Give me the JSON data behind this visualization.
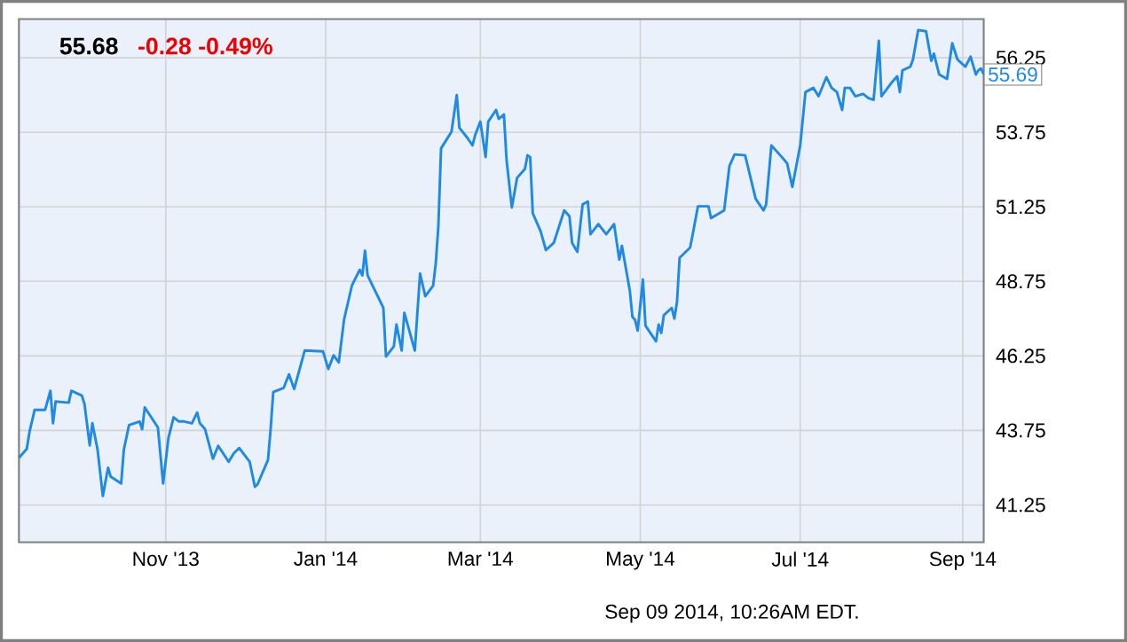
{
  "chart_data": {
    "type": "line",
    "title": "55.68",
    "subtitle": "-0.28 -0.49%",
    "annotations": [
      "Sep 09 2014, 10:26AM EDT.",
      {
        "text": "55.69",
        "x": "2014-09-09",
        "y": 55.69
      }
    ],
    "color": "#1e8ae6",
    "grid": true,
    "xlim": [
      "2013-09-06",
      "2014-09-09"
    ],
    "ylim": [
      40,
      57.55
    ],
    "xticks": [
      {
        "value": "2013-11-01",
        "label": "Nov '13"
      },
      {
        "value": "2014-01-01",
        "label": "Jan '14"
      },
      {
        "value": "2014-03-01",
        "label": "Mar '14"
      },
      {
        "value": "2014-05-01",
        "label": "May '14"
      },
      {
        "value": "2014-07-01",
        "label": "Jul '14"
      },
      {
        "value": "2014-09-01",
        "label": "Sep '14"
      }
    ],
    "yticks": [
      41.25,
      43.75,
      46.25,
      48.75,
      51.25,
      53.75,
      56.25
    ],
    "x": [
      "2013-09-06",
      "2013-09-09",
      "2013-09-10",
      "2013-09-12",
      "2013-09-16",
      "2013-09-18",
      "2013-09-19",
      "2013-09-20",
      "2013-09-25",
      "2013-09-26",
      "2013-09-30",
      "2013-10-01",
      "2013-10-03",
      "2013-10-04",
      "2013-10-06",
      "2013-10-08",
      "2013-10-10",
      "2013-10-11",
      "2013-10-15",
      "2013-10-16",
      "2013-10-18",
      "2013-10-22",
      "2013-10-23",
      "2013-10-24",
      "2013-10-29",
      "2013-10-31",
      "2013-11-02",
      "2013-11-04",
      "2013-11-06",
      "2013-11-08",
      "2013-11-11",
      "2013-11-13",
      "2013-11-14",
      "2013-11-16",
      "2013-11-19",
      "2013-11-21",
      "2013-11-25",
      "2013-11-27",
      "2013-11-29",
      "2013-12-03",
      "2013-12-05",
      "2013-12-06",
      "2013-12-10",
      "2013-12-11",
      "2013-12-12",
      "2013-12-16",
      "2013-12-18",
      "2013-12-20",
      "2013-12-24",
      "2013-12-31",
      "2014-01-02",
      "2014-01-04",
      "2014-01-06",
      "2014-01-08",
      "2014-01-11",
      "2014-01-14",
      "2014-01-15",
      "2014-01-16",
      "2014-01-17",
      "2014-01-23",
      "2014-01-24",
      "2014-01-27",
      "2014-01-28",
      "2014-01-30",
      "2014-01-31",
      "2014-02-04",
      "2014-02-06",
      "2014-02-08",
      "2014-02-11",
      "2014-02-12",
      "2014-02-13",
      "2014-02-14",
      "2014-02-18",
      "2014-02-20",
      "2014-02-21",
      "2014-02-24",
      "2014-02-26",
      "2014-02-27",
      "2014-03-01",
      "2014-03-03",
      "2014-03-04",
      "2014-03-07",
      "2014-03-08",
      "2014-03-10",
      "2014-03-11",
      "2014-03-13",
      "2014-03-15",
      "2014-03-18",
      "2014-03-19",
      "2014-03-20",
      "2014-03-21",
      "2014-03-24",
      "2014-03-26",
      "2014-03-29",
      "2014-04-02",
      "2014-04-04",
      "2014-04-05",
      "2014-04-07",
      "2014-04-09",
      "2014-04-11",
      "2014-04-12",
      "2014-04-15",
      "2014-04-18",
      "2014-04-21",
      "2014-04-23",
      "2014-04-24",
      "2014-04-27",
      "2014-04-28",
      "2014-04-29",
      "2014-04-30",
      "2014-05-02",
      "2014-05-03",
      "2014-05-07",
      "2014-05-08",
      "2014-05-09",
      "2014-05-10",
      "2014-05-13",
      "2014-05-14",
      "2014-05-15",
      "2014-05-16",
      "2014-05-20",
      "2014-05-21",
      "2014-05-23",
      "2014-05-27",
      "2014-05-28",
      "2014-06-02",
      "2014-06-04",
      "2014-06-06",
      "2014-06-10",
      "2014-06-14",
      "2014-06-17",
      "2014-06-18",
      "2014-06-20",
      "2014-06-24",
      "2014-06-26",
      "2014-06-28",
      "2014-07-01",
      "2014-07-03",
      "2014-07-06",
      "2014-07-08",
      "2014-07-11",
      "2014-07-13",
      "2014-07-15",
      "2014-07-17",
      "2014-07-18",
      "2014-07-20",
      "2014-07-22",
      "2014-07-25",
      "2014-07-27",
      "2014-07-29",
      "2014-07-31",
      "2014-08-01",
      "2014-08-05",
      "2014-08-07",
      "2014-08-08",
      "2014-08-09",
      "2014-08-12",
      "2014-08-13",
      "2014-08-15",
      "2014-08-18",
      "2014-08-20",
      "2014-08-21",
      "2014-08-23",
      "2014-08-26",
      "2014-08-28",
      "2014-08-30",
      "2014-09-02",
      "2014-09-04",
      "2014-09-06",
      "2014-09-07",
      "2014-09-08",
      "2014-09-09"
    ],
    "values": [
      42.83,
      43.13,
      43.69,
      44.44,
      44.44,
      45.08,
      43.99,
      44.72,
      44.68,
      45.08,
      44.92,
      44.64,
      43.25,
      43.99,
      43.1,
      41.55,
      42.5,
      42.2,
      41.97,
      43.1,
      43.93,
      44.05,
      43.79,
      44.52,
      43.85,
      41.97,
      43.49,
      44.19,
      44.05,
      44.05,
      43.99,
      44.35,
      43.99,
      43.79,
      42.8,
      43.23,
      42.7,
      42.99,
      43.16,
      42.7,
      41.86,
      41.94,
      42.76,
      43.79,
      45.04,
      45.18,
      45.63,
      45.14,
      46.43,
      46.4,
      45.81,
      46.27,
      46.03,
      47.46,
      48.61,
      49.14,
      48.95,
      49.78,
      48.95,
      47.86,
      46.23,
      46.57,
      47.3,
      46.43,
      47.7,
      46.43,
      49.01,
      48.25,
      48.61,
      49.36,
      50.63,
      53.21,
      53.77,
      55.0,
      53.9,
      53.57,
      53.31,
      53.65,
      54.11,
      52.92,
      54.11,
      54.5,
      54.2,
      54.35,
      52.82,
      51.23,
      52.22,
      52.52,
      52.98,
      52.92,
      51.03,
      50.43,
      49.8,
      50.04,
      51.13,
      50.93,
      50.04,
      49.74,
      51.33,
      51.43,
      50.33,
      50.67,
      50.33,
      50.67,
      49.48,
      49.94,
      48.45,
      47.56,
      47.46,
      47.1,
      48.81,
      47.26,
      46.74,
      47.3,
      47.02,
      47.62,
      47.86,
      47.5,
      48.05,
      49.54,
      49.88,
      50.33,
      51.27,
      51.27,
      50.87,
      51.13,
      52.62,
      53.01,
      52.98,
      51.52,
      51.13,
      51.33,
      53.31,
      52.92,
      52.71,
      51.92,
      53.31,
      55.1,
      55.24,
      54.96,
      55.6,
      55.24,
      55.1,
      54.5,
      55.24,
      55.24,
      54.96,
      55.04,
      54.9,
      54.84,
      56.82,
      54.96,
      55.43,
      55.63,
      55.1,
      55.83,
      55.95,
      56.19,
      57.18,
      57.14,
      56.15,
      56.39,
      55.69,
      55.54,
      56.74,
      56.19,
      55.95,
      56.29,
      55.69,
      55.83,
      55.89,
      55.69
    ]
  }
}
